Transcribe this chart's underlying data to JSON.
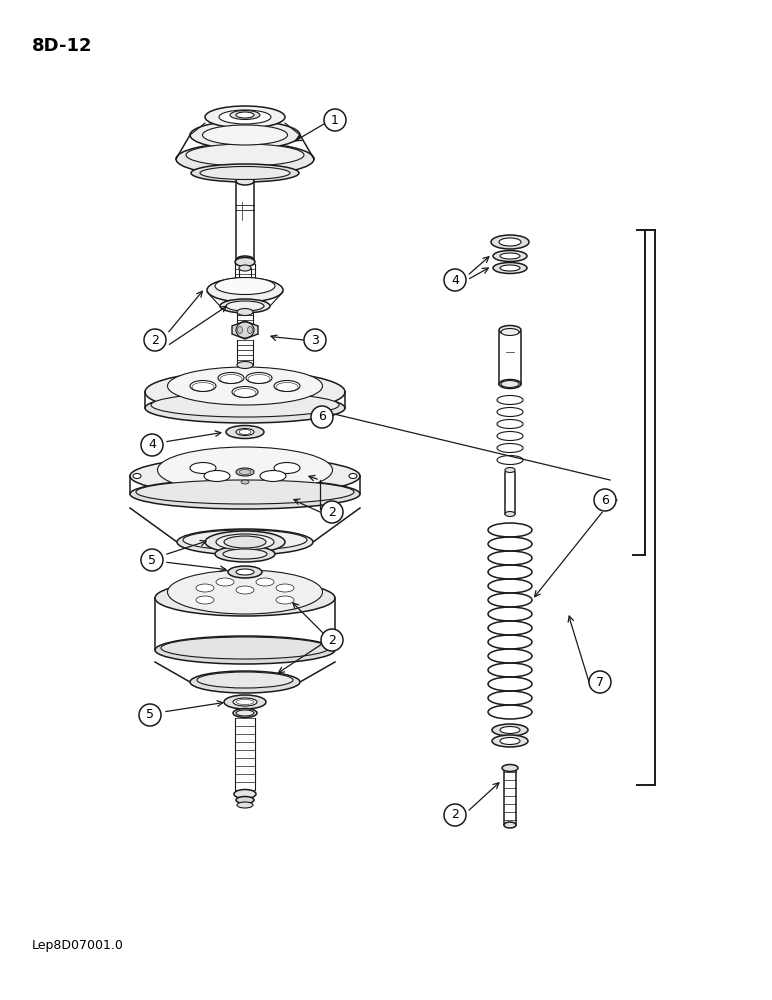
{
  "title_label": "8D-12",
  "footer_label": "Lep8D07001.0",
  "bg_color": "#ffffff",
  "line_color": "#1a1a1a"
}
